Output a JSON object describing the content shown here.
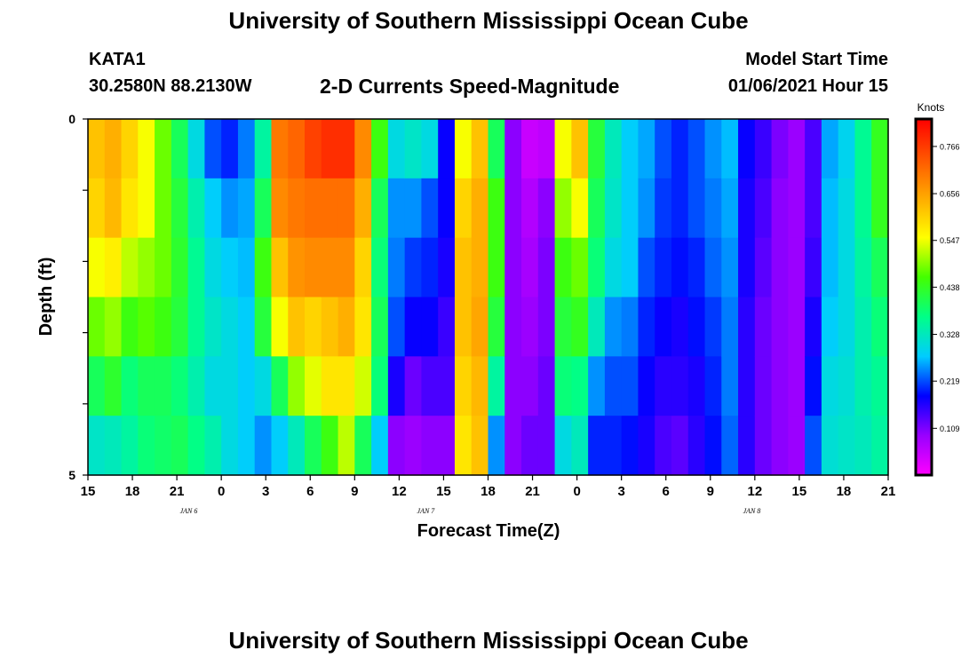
{
  "header": {
    "title": "University of Southern Mississippi Ocean Cube",
    "station": "KATA1",
    "coordinates": "30.2580N 88.2130W",
    "plot_title": "2-D Currents Speed-Magnitude",
    "model_start_label": "Model Start Time",
    "model_start_value": "01/06/2021 Hour 15"
  },
  "footer": {
    "title": "University of Southern Mississippi Ocean Cube"
  },
  "chart_data": {
    "type": "heatmap",
    "title": "2-D Currents Speed-Magnitude",
    "xlabel": "Forecast Time(Z)",
    "ylabel": "Depth (ft)",
    "x_tick_labels": [
      "15",
      "18",
      "21",
      "0",
      "3",
      "6",
      "9",
      "12",
      "15",
      "18",
      "21",
      "0",
      "3",
      "6",
      "9",
      "12",
      "15",
      "18",
      "21"
    ],
    "date_labels": [
      {
        "text": "JAN 6",
        "hour_index": 5
      },
      {
        "text": "JAN 7",
        "hour_index": 21
      },
      {
        "text": "JAN 8",
        "hour_index": 43
      }
    ],
    "y_tick_labels": [
      "0",
      "5"
    ],
    "ylim": [
      0,
      5
    ],
    "colorbar": {
      "title": "Knots",
      "tick_labels": [
        "0.766",
        "0.656",
        "0.547",
        "0.438",
        "0.328",
        "0.219",
        "0.109"
      ],
      "vmin": 0.0,
      "vmax": 0.83,
      "colors": [
        "#ff00ff",
        "#9900ff",
        "#0000ff",
        "#00ccff",
        "#00ff88",
        "#44ff00",
        "#ffff00",
        "#ffaa00",
        "#ff5500",
        "#ff0000"
      ]
    },
    "depth_rows": 5,
    "speed_knots_by_hour": [
      [
        0.62,
        0.6,
        0.55,
        0.48,
        0.4,
        0.32
      ],
      [
        0.64,
        0.63,
        0.57,
        0.5,
        0.43,
        0.33
      ],
      [
        0.6,
        0.58,
        0.52,
        0.45,
        0.38,
        0.35
      ],
      [
        0.55,
        0.55,
        0.5,
        0.47,
        0.4,
        0.38
      ],
      [
        0.48,
        0.48,
        0.48,
        0.45,
        0.4,
        0.39
      ],
      [
        0.4,
        0.42,
        0.43,
        0.42,
        0.38,
        0.4
      ],
      [
        0.3,
        0.34,
        0.36,
        0.36,
        0.34,
        0.37
      ],
      [
        0.22,
        0.28,
        0.3,
        0.32,
        0.3,
        0.34
      ],
      [
        0.2,
        0.25,
        0.28,
        0.3,
        0.3,
        0.3
      ],
      [
        0.24,
        0.26,
        0.27,
        0.28,
        0.28,
        0.28
      ],
      [
        0.35,
        0.4,
        0.45,
        0.42,
        0.3,
        0.25
      ],
      [
        0.7,
        0.68,
        0.62,
        0.55,
        0.4,
        0.28
      ],
      [
        0.72,
        0.7,
        0.67,
        0.62,
        0.5,
        0.33
      ],
      [
        0.76,
        0.71,
        0.68,
        0.6,
        0.54,
        0.4
      ],
      [
        0.78,
        0.71,
        0.68,
        0.62,
        0.58,
        0.45
      ],
      [
        0.78,
        0.71,
        0.68,
        0.64,
        0.58,
        0.52
      ],
      [
        0.68,
        0.64,
        0.6,
        0.58,
        0.53,
        0.4
      ],
      [
        0.45,
        0.4,
        0.38,
        0.4,
        0.38,
        0.28
      ],
      [
        0.3,
        0.25,
        0.24,
        0.22,
        0.17,
        0.1
      ],
      [
        0.32,
        0.25,
        0.21,
        0.18,
        0.12,
        0.09
      ],
      [
        0.3,
        0.22,
        0.2,
        0.18,
        0.14,
        0.1
      ],
      [
        0.18,
        0.18,
        0.17,
        0.15,
        0.14,
        0.1
      ],
      [
        0.55,
        0.6,
        0.62,
        0.62,
        0.6,
        0.58
      ],
      [
        0.62,
        0.64,
        0.64,
        0.65,
        0.63,
        0.62
      ],
      [
        0.4,
        0.45,
        0.45,
        0.42,
        0.35,
        0.25
      ],
      [
        0.1,
        0.1,
        0.1,
        0.1,
        0.1,
        0.1
      ],
      [
        0.05,
        0.07,
        0.08,
        0.09,
        0.1,
        0.12
      ],
      [
        0.06,
        0.1,
        0.11,
        0.11,
        0.12,
        0.12
      ],
      [
        0.55,
        0.5,
        0.45,
        0.42,
        0.38,
        0.3
      ],
      [
        0.62,
        0.55,
        0.48,
        0.44,
        0.37,
        0.33
      ],
      [
        0.42,
        0.4,
        0.38,
        0.33,
        0.25,
        0.2
      ],
      [
        0.33,
        0.32,
        0.3,
        0.25,
        0.22,
        0.2
      ],
      [
        0.28,
        0.28,
        0.28,
        0.24,
        0.22,
        0.19
      ],
      [
        0.26,
        0.25,
        0.22,
        0.2,
        0.18,
        0.17
      ],
      [
        0.22,
        0.21,
        0.2,
        0.18,
        0.16,
        0.14
      ],
      [
        0.2,
        0.2,
        0.19,
        0.17,
        0.16,
        0.13
      ],
      [
        0.22,
        0.22,
        0.2,
        0.19,
        0.17,
        0.16
      ],
      [
        0.25,
        0.24,
        0.23,
        0.21,
        0.2,
        0.19
      ],
      [
        0.27,
        0.26,
        0.25,
        0.24,
        0.24,
        0.23
      ],
      [
        0.18,
        0.17,
        0.17,
        0.16,
        0.16,
        0.16
      ],
      [
        0.15,
        0.14,
        0.13,
        0.12,
        0.12,
        0.12
      ],
      [
        0.11,
        0.1,
        0.1,
        0.1,
        0.1,
        0.1
      ],
      [
        0.09,
        0.09,
        0.09,
        0.09,
        0.09,
        0.09
      ],
      [
        0.14,
        0.14,
        0.15,
        0.17,
        0.19,
        0.22
      ],
      [
        0.26,
        0.27,
        0.27,
        0.28,
        0.3,
        0.31
      ],
      [
        0.29,
        0.3,
        0.3,
        0.3,
        0.31,
        0.32
      ],
      [
        0.36,
        0.36,
        0.35,
        0.34,
        0.34,
        0.33
      ],
      [
        0.44,
        0.44,
        0.4,
        0.38,
        0.36,
        0.35
      ]
    ]
  }
}
